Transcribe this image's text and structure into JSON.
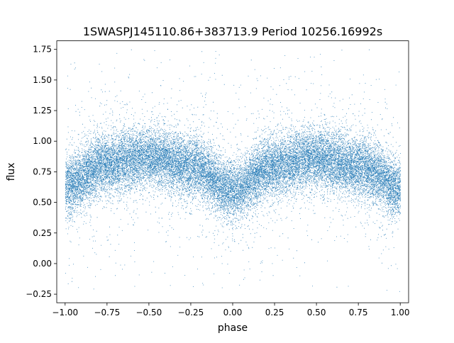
{
  "chart_data": {
    "type": "scatter",
    "title": "1SWASPJ145110.86+383713.9 Period 10256.16992s",
    "xlabel": "phase",
    "ylabel": "flux",
    "xlim": [
      -1.05,
      1.05
    ],
    "ylim": [
      -0.32,
      1.82
    ],
    "xticks": [
      -1.0,
      -0.75,
      -0.5,
      -0.25,
      0.0,
      0.25,
      0.5,
      0.75,
      1.0
    ],
    "xtick_labels": [
      "−1.00",
      "−0.75",
      "−0.50",
      "−0.25",
      "0.00",
      "0.25",
      "0.50",
      "0.75",
      "1.00"
    ],
    "yticks": [
      -0.25,
      0.0,
      0.25,
      0.5,
      0.75,
      1.0,
      1.25,
      1.5,
      1.75
    ],
    "ytick_labels": [
      "−0.25",
      "0.00",
      "0.25",
      "0.50",
      "0.75",
      "1.00",
      "1.25",
      "1.50",
      "1.75"
    ],
    "grid": false,
    "legend": "none",
    "series": [
      {
        "color": "#1f77b4",
        "phase_range": [
          -1.0,
          1.0
        ],
        "trend": {
          "description_x": [
            -1.0,
            -0.75,
            -0.5,
            -0.25,
            0.0,
            0.25,
            0.5,
            0.75,
            1.0
          ],
          "mean_flux": [
            0.64,
            0.82,
            0.87,
            0.8,
            0.6,
            0.8,
            0.87,
            0.79,
            0.62
          ]
        },
        "spread": {
          "core_sigma": 0.12,
          "outlier_range": [
            -0.23,
            1.75
          ]
        },
        "point_count": 26000
      }
    ]
  }
}
